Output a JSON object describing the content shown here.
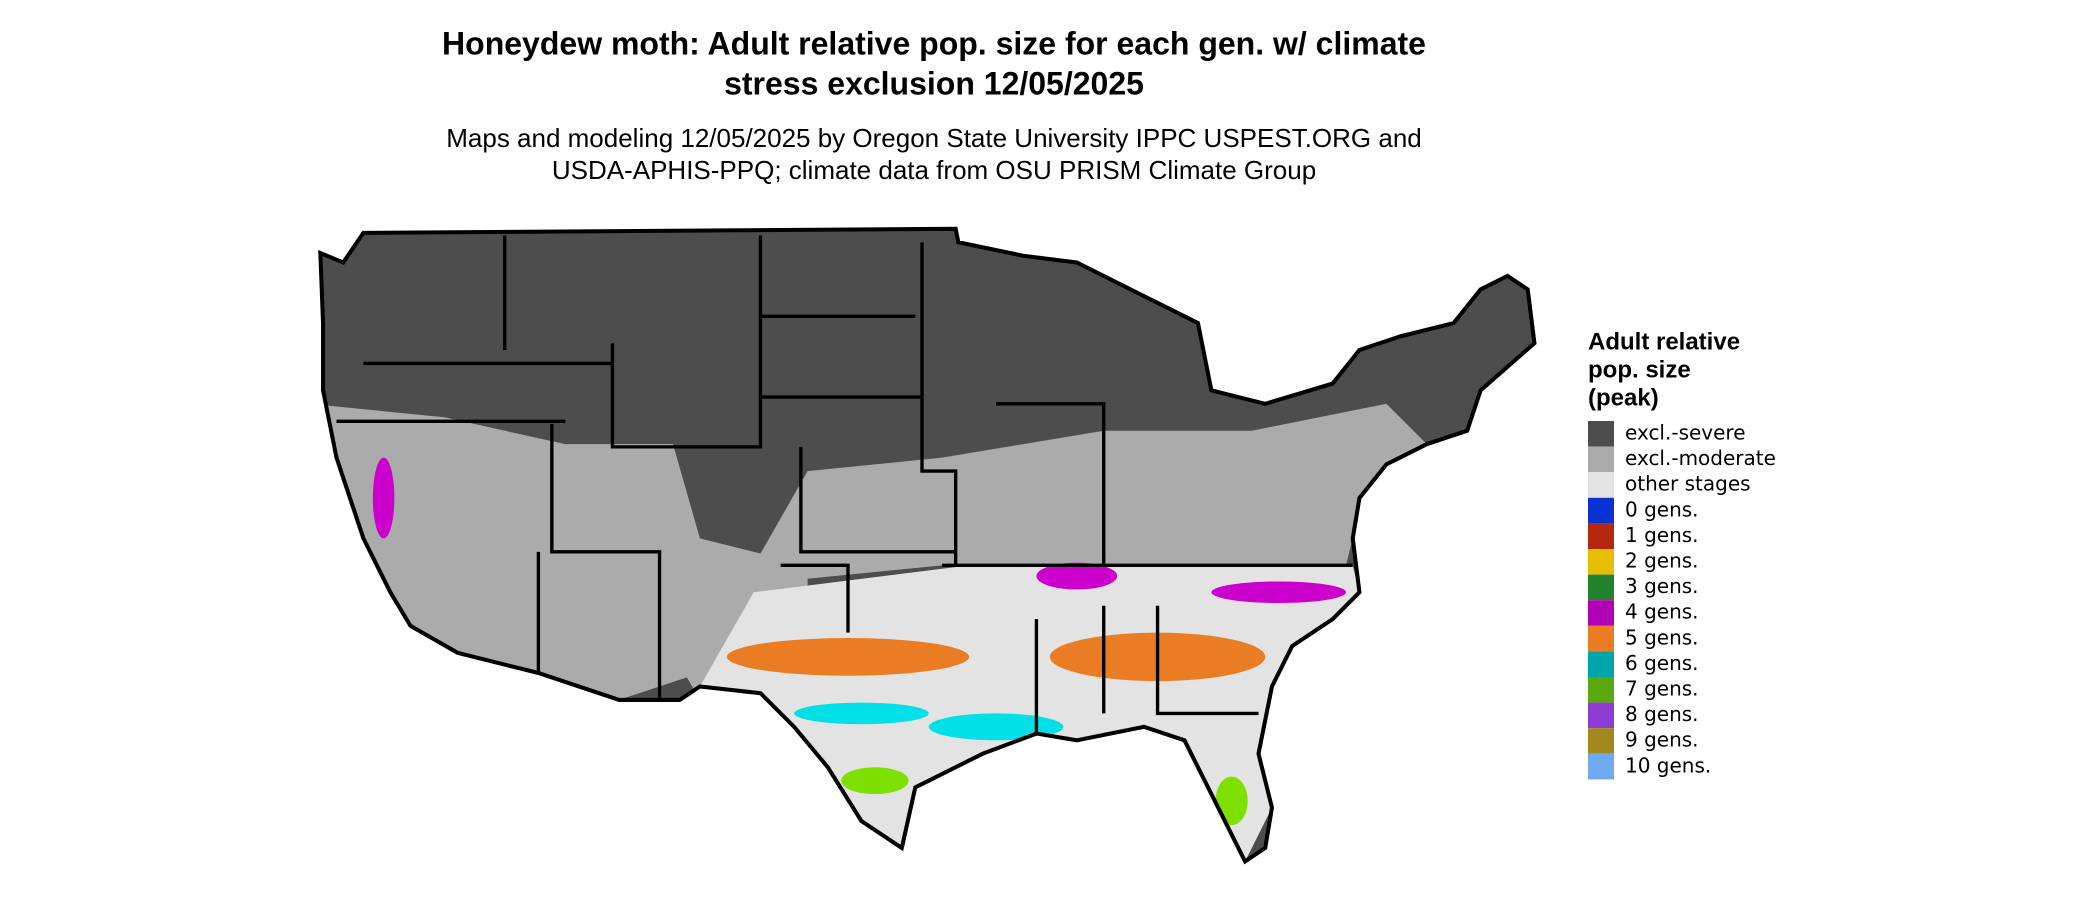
{
  "title": [
    "Honeydew moth: Adult relative pop. size for each gen. w/ climate",
    "stress exclusion 12/05/2025"
  ],
  "subtitle": [
    "Maps and modeling 12/05/2025 by Oregon State University IPPC USPEST.ORG and",
    "USDA-APHIS-PPQ; climate data from OSU PRISM Climate Group"
  ],
  "legend": {
    "title": [
      "Adult relative",
      "pop. size",
      "(peak)"
    ],
    "items": [
      {
        "label": "excl.-severe",
        "color": "#4d4d4d"
      },
      {
        "label": "excl.-moderate",
        "color": "#ababab"
      },
      {
        "label": "other stages",
        "color": "#e3e3e3"
      },
      {
        "label": "0 gens.",
        "color": "#0a32d2"
      },
      {
        "label": "1 gens.",
        "color": "#b4280f"
      },
      {
        "label": "2 gens.",
        "color": "#e6be00"
      },
      {
        "label": "3 gens.",
        "color": "#23822d"
      },
      {
        "label": "4 gens.",
        "color": "#b400b4"
      },
      {
        "label": "5 gens.",
        "color": "#ea7d23"
      },
      {
        "label": "6 gens.",
        "color": "#00a5aa"
      },
      {
        "label": "7 gens.",
        "color": "#5aaa0f"
      },
      {
        "label": "8 gens.",
        "color": "#8c3cd2"
      },
      {
        "label": "9 gens.",
        "color": "#a0871e"
      },
      {
        "label": "10 gens.",
        "color": "#6eaaf0"
      }
    ]
  }
}
